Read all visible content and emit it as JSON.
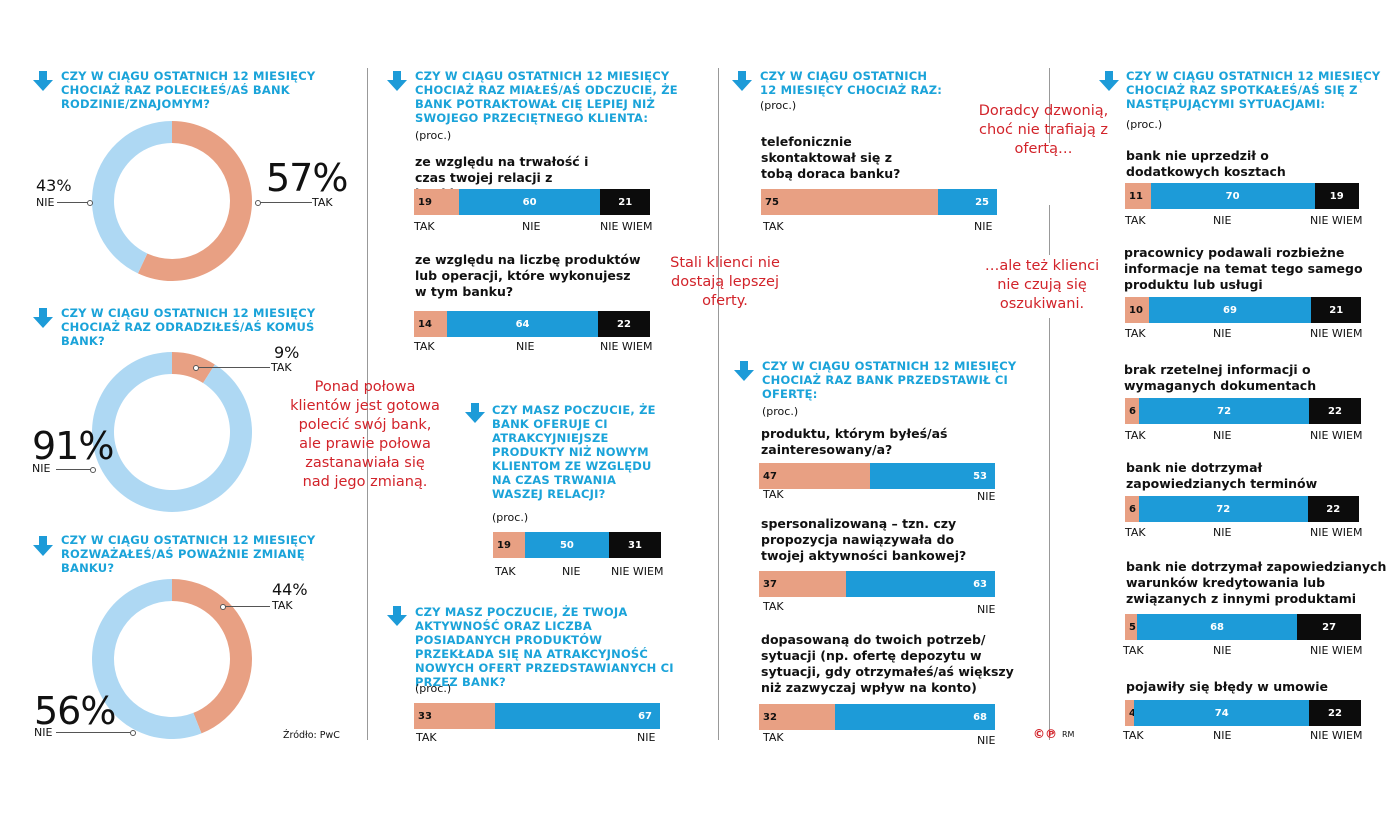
{
  "colors": {
    "tak": "#e8a083",
    "nie": "#1d9bd8",
    "nie_wiem": "#0c0c0c",
    "light_blue": "#aed8f3",
    "accent": "#1aa3d9",
    "annotation": "#d2232a"
  },
  "donut1": {
    "title": "CZY W CIĄGU OSTATNICH 12 MIESIĘCY CHOCIAŻ RAZ POLECIŁEŚ/AŚ BANK RODZINIE/ZNAJOMYM?",
    "tak_pct": "57%",
    "tak_label": "TAK",
    "nie_pct": "43%",
    "nie_label": "NIE"
  },
  "donut2": {
    "title": "CZY W CIĄGU OSTATNICH 12 MIESIĘCY CHOCIAŻ RAZ ODRADZIŁEŚ/AŚ KOMUŚ BANK?",
    "tak_pct": "9%",
    "tak_label": "TAK",
    "nie_pct": "91%",
    "nie_label": "NIE"
  },
  "donut3": {
    "title": "CZY W CIĄGU OSTATNICH 12 MIESIĘCY ROZWAŻAŁEŚ/AŚ POWAŻNIE ZMIANĘ BANKU?",
    "tak_pct": "44%",
    "tak_label": "TAK",
    "nie_pct": "56%",
    "nie_label": "NIE"
  },
  "source": "Źródło: PwC",
  "annotations": {
    "a1": "Ponad połowa klientów jest gotowa polecić swój bank, ale prawie połowa zastanawiała się nad jego zmianą.",
    "a2": "Stali klienci nie dostają lepszej oferty.",
    "a3": "Doradcy dzwonią, choć nie trafiają z ofertą…",
    "a4": "…ale też klienci nie czują się oszukiwani."
  },
  "q2": {
    "title": "CZY W CIĄGU OSTATNICH 12 MIESIĘCY CHOCIAŻ RAZ MIAŁEŚ/AŚ ODCZUCIE, ŻE BANK POTRAKTOWAŁ CIĘ LEPIEJ NIŻ SWOJEGO PRZECIĘTNEGO KLIENTA:",
    "proc": "(proc.)",
    "i1": "ze względu na trwałość i czas twojej relacji z bankiem?",
    "i2": "ze względu na liczbę produktów lub operacji, które wykonujesz w tym banku?"
  },
  "q3": {
    "title": "CZY MASZ POCZUCIE, ŻE BANK OFERUJE CI ATRAKCYJNIEJSZE PRODUKTY NIŻ NOWYM KLIENTOM ZE WZGLĘDU NA CZAS TRWANIA WASZEJ RELACJI?",
    "proc": "(proc.)"
  },
  "q4": {
    "title": "CZY MASZ POCZUCIE, ŻE TWOJA AKTYWNOŚĆ ORAZ LICZBA POSIADANYCH PRODUKTÓW PRZEKŁADA SIĘ NA ATRAKCYJNOŚĆ NOWYCH OFERT PRZEDSTAWIANYCH CI PRZEZ BANK?",
    "proc": "(proc.)"
  },
  "q5": {
    "title": "CZY W CIĄGU OSTATNICH 12 MIESIĘCY CHOCIAŻ RAZ:",
    "proc": "(proc.)",
    "i1": "telefonicznie skontaktował się z tobą doraca banku?"
  },
  "q6": {
    "title": "CZY W CIĄGU OSTATNICH 12 MIESIĘCY CHOCIAŻ RAZ BANK PRZEDSTAWIŁ CI OFERTĘ:",
    "proc": "(proc.)",
    "i1": "produktu, którym byłeś/aś zainteresowany/a?",
    "i2": "spersonalizowaną – tzn. czy propozycja nawiązywała do twojej aktywności bankowej?",
    "i3": "dopasowaną do twoich potrzeb/ sytuacji (np. ofertę depozytu w sytuacji, gdy otrzymałeś/aś większy niż zazwyczaj wpływ na konto)"
  },
  "q7": {
    "title": "CZY W CIĄGU OSTATNICH 12 MIESIĘCY CHOCIAŻ RAZ SPOTKAŁEŚ/AŚ SIĘ Z NASTĘPUJĄCYMI SYTUACJAMI:",
    "proc": "(proc.)",
    "i1": "bank nie uprzedził o dodatkowych kosztach",
    "i2": "pracownicy podawali rozbieżne informacje na temat tego samego produktu lub usługi",
    "i3": "brak rzetelnej informacji o wymaganych dokumentach",
    "i4": "bank nie dotrzymał zapowiedzianych terminów",
    "i5": "bank nie dotrzymał zapowiedzianych warunków kredytowania lub związanych z innymi produktami",
    "i6": "pojawiły się błędy w umowie"
  },
  "axis": {
    "tak": "TAK",
    "nie": "NIE",
    "nie_wiem": "NIE WIEM"
  },
  "credit": "RM",
  "chart_data": [
    {
      "type": "pie",
      "title": "CZY W CIĄGU OSTATNICH 12 MIESIĘCY CHOCIAŻ RAZ POLECIŁEŚ/AŚ BANK RODZINIE/ZNAJOMYM?",
      "categories": [
        "TAK",
        "NIE"
      ],
      "values": [
        57,
        43
      ]
    },
    {
      "type": "pie",
      "title": "CZY W CIĄGU OSTATNICH 12 MIESIĘCY CHOCIAŻ RAZ ODRADZIŁEŚ/AŚ KOMUŚ BANK?",
      "categories": [
        "TAK",
        "NIE"
      ],
      "values": [
        9,
        91
      ]
    },
    {
      "type": "pie",
      "title": "CZY W CIĄGU OSTATNICH 12 MIESIĘCY ROZWAŻAŁEŚ/AŚ POWAŻNIE ZMIANĘ BANKU?",
      "categories": [
        "TAK",
        "NIE"
      ],
      "values": [
        44,
        56
      ]
    },
    {
      "type": "bar",
      "categories": [
        "ze względu na trwałość i czas twojej relacji z bankiem?",
        "ze względu na liczbę produktów lub operacji, które wykonujesz w tym banku?"
      ],
      "series": [
        {
          "name": "TAK",
          "values": [
            19,
            14
          ]
        },
        {
          "name": "NIE",
          "values": [
            60,
            64
          ]
        },
        {
          "name": "NIE WIEM",
          "values": [
            21,
            22
          ]
        }
      ]
    },
    {
      "type": "bar",
      "categories": [
        ""
      ],
      "series": [
        {
          "name": "TAK",
          "values": [
            19
          ]
        },
        {
          "name": "NIE",
          "values": [
            50
          ]
        },
        {
          "name": "NIE WIEM",
          "values": [
            31
          ]
        }
      ]
    },
    {
      "type": "bar",
      "categories": [
        ""
      ],
      "series": [
        {
          "name": "TAK",
          "values": [
            33
          ]
        },
        {
          "name": "NIE",
          "values": [
            67
          ]
        }
      ]
    },
    {
      "type": "bar",
      "categories": [
        "telefonicznie skontaktował się z tobą doraca banku?"
      ],
      "series": [
        {
          "name": "TAK",
          "values": [
            75
          ]
        },
        {
          "name": "NIE",
          "values": [
            25
          ]
        }
      ]
    },
    {
      "type": "bar",
      "categories": [
        "produktu, którym byłeś/aś zainteresowany/a?",
        "spersonalizowaną – tzn. czy propozycja nawiązywała do twojej aktywności bankowej?",
        "dopasowaną do twoich potrzeb/ sytuacji (np. ofertę depozytu w sytuacji, gdy otrzymałeś/aś większy niż zazwyczaj wpływ na konto)"
      ],
      "series": [
        {
          "name": "TAK",
          "values": [
            47,
            37,
            32
          ]
        },
        {
          "name": "NIE",
          "values": [
            53,
            63,
            68
          ]
        }
      ]
    },
    {
      "type": "bar",
      "categories": [
        "bank nie uprzedził o dodatkowych kosztach",
        "pracownicy podawali rozbieżne informacje na temat tego samego produktu lub usługi",
        "brak rzetelnej informacji o wymaganych dokumentach",
        "bank nie dotrzymał zapowiedzianych terminów",
        "bank nie dotrzymał zapowiedzianych warunków kredytowania lub związanych z innymi produktami",
        "pojawiły się błędy w umowie"
      ],
      "series": [
        {
          "name": "TAK",
          "values": [
            11,
            10,
            6,
            6,
            5,
            4
          ]
        },
        {
          "name": "NIE",
          "values": [
            70,
            69,
            72,
            72,
            68,
            74
          ]
        },
        {
          "name": "NIE WIEM",
          "values": [
            19,
            21,
            22,
            22,
            27,
            22
          ]
        }
      ]
    }
  ]
}
